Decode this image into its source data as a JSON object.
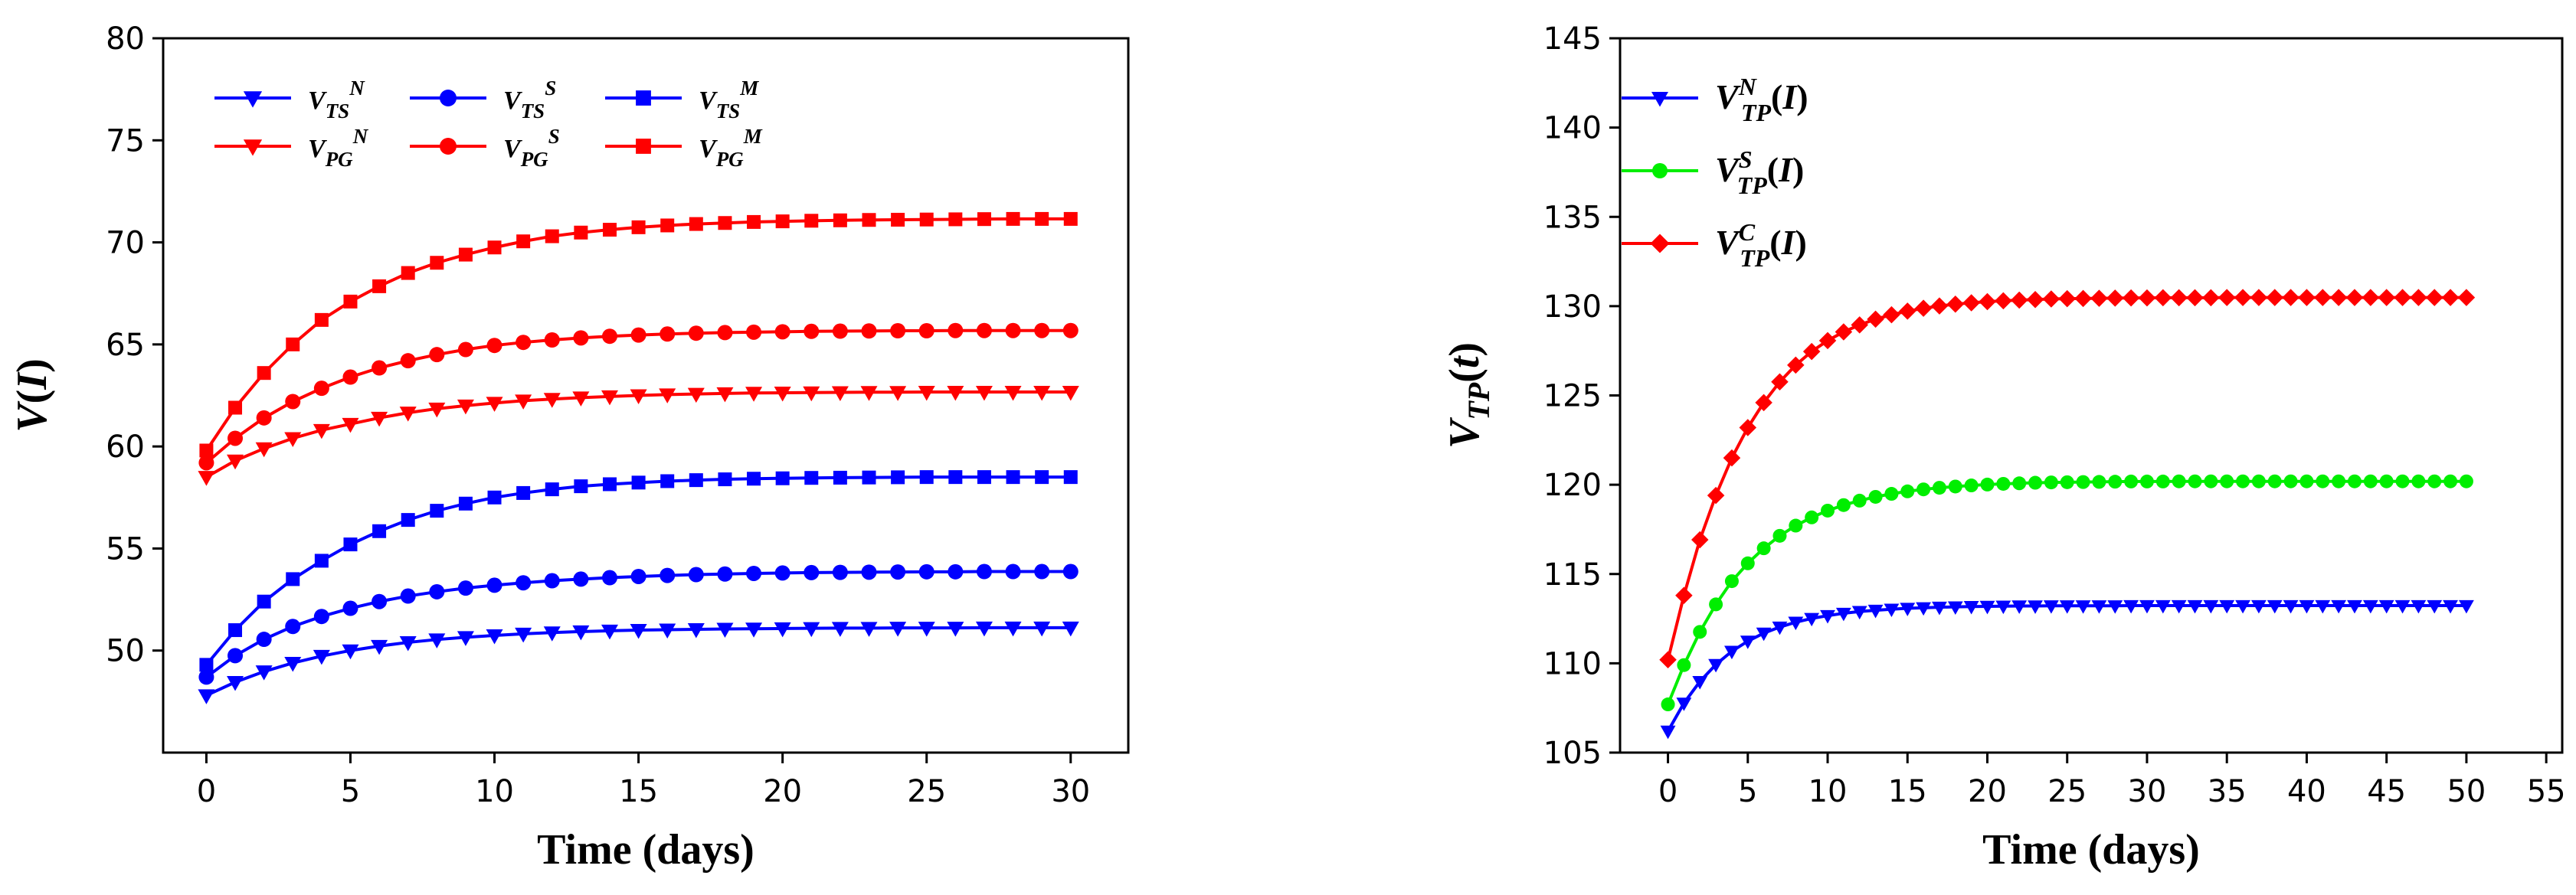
{
  "chart_data": [
    {
      "type": "line",
      "xlabel": "Time (days)",
      "ylabel": {
        "base": "V",
        "arg": "I"
      },
      "xlim": [
        -1.5,
        32
      ],
      "ylim": [
        45,
        80
      ],
      "xticks": [
        0,
        5,
        10,
        15,
        20,
        25,
        30
      ],
      "yticks": [
        50,
        55,
        60,
        65,
        70,
        75,
        80
      ],
      "series": [
        {
          "name": "V_TS^N",
          "label_base": "V",
          "label_sub": "TS",
          "label_sup": "N",
          "marker": "triangle-down",
          "color": "#0000ff",
          "x": [
            0,
            1,
            2,
            3,
            4,
            5,
            6,
            7,
            8,
            9,
            10,
            11,
            12,
            13,
            14,
            15,
            16,
            17,
            18,
            19,
            20,
            21,
            22,
            23,
            24,
            25,
            26,
            27,
            28,
            29,
            30
          ],
          "y": [
            47.8,
            48.45,
            48.97,
            49.39,
            49.73,
            50.0,
            50.22,
            50.4,
            50.54,
            50.65,
            50.74,
            50.82,
            50.88,
            50.93,
            50.97,
            51.0,
            51.02,
            51.04,
            51.06,
            51.07,
            51.08,
            51.09,
            51.1,
            51.1,
            51.11,
            51.11,
            51.11,
            51.12,
            51.12,
            51.12,
            51.12
          ]
        },
        {
          "name": "V_TS^S",
          "label_base": "V",
          "label_sub": "TS",
          "label_sup": "S",
          "marker": "circle",
          "color": "#0000ff",
          "x": [
            0,
            1,
            2,
            3,
            4,
            5,
            6,
            7,
            8,
            9,
            10,
            11,
            12,
            13,
            14,
            15,
            16,
            17,
            18,
            19,
            20,
            21,
            22,
            23,
            24,
            25,
            26,
            27,
            28,
            29,
            30
          ],
          "y": [
            48.7,
            49.75,
            50.55,
            51.18,
            51.67,
            52.07,
            52.4,
            52.67,
            52.88,
            53.06,
            53.2,
            53.32,
            53.42,
            53.5,
            53.57,
            53.63,
            53.68,
            53.72,
            53.75,
            53.78,
            53.8,
            53.82,
            53.83,
            53.84,
            53.85,
            53.86,
            53.86,
            53.87,
            53.87,
            53.87,
            53.87
          ]
        },
        {
          "name": "V_TS^M",
          "label_base": "V",
          "label_sub": "TS",
          "label_sup": "M",
          "marker": "square",
          "color": "#0000ff",
          "x": [
            0,
            1,
            2,
            3,
            4,
            5,
            6,
            7,
            8,
            9,
            10,
            11,
            12,
            13,
            14,
            15,
            16,
            17,
            18,
            19,
            20,
            21,
            22,
            23,
            24,
            25,
            26,
            27,
            28,
            29,
            30
          ],
          "y": [
            49.3,
            51.0,
            52.4,
            53.5,
            54.4,
            55.2,
            55.85,
            56.4,
            56.85,
            57.2,
            57.5,
            57.72,
            57.9,
            58.05,
            58.15,
            58.23,
            58.3,
            58.35,
            58.39,
            58.42,
            58.44,
            58.46,
            58.47,
            58.48,
            58.49,
            58.5,
            58.5,
            58.5,
            58.5,
            58.5,
            58.5
          ]
        },
        {
          "name": "V_PG^N",
          "label_base": "V",
          "label_sub": "PG",
          "label_sup": "N",
          "marker": "triangle-down",
          "color": "#ff0000",
          "x": [
            0,
            1,
            2,
            3,
            4,
            5,
            6,
            7,
            8,
            9,
            10,
            11,
            12,
            13,
            14,
            15,
            16,
            17,
            18,
            19,
            20,
            21,
            22,
            23,
            24,
            25,
            26,
            27,
            28,
            29,
            30
          ],
          "y": [
            58.5,
            59.3,
            59.9,
            60.4,
            60.8,
            61.1,
            61.4,
            61.65,
            61.85,
            62.0,
            62.13,
            62.24,
            62.32,
            62.39,
            62.45,
            62.5,
            62.54,
            62.57,
            62.6,
            62.62,
            62.63,
            62.64,
            62.65,
            62.66,
            62.66,
            62.67,
            62.67,
            62.67,
            62.67,
            62.67,
            62.67
          ]
        },
        {
          "name": "V_PG^S",
          "label_base": "V",
          "label_sub": "PG",
          "label_sup": "S",
          "marker": "circle",
          "color": "#ff0000",
          "x": [
            0,
            1,
            2,
            3,
            4,
            5,
            6,
            7,
            8,
            9,
            10,
            11,
            12,
            13,
            14,
            15,
            16,
            17,
            18,
            19,
            20,
            21,
            22,
            23,
            24,
            25,
            26,
            27,
            28,
            29,
            30
          ],
          "y": [
            59.2,
            60.4,
            61.4,
            62.2,
            62.85,
            63.4,
            63.85,
            64.2,
            64.5,
            64.75,
            64.95,
            65.1,
            65.22,
            65.32,
            65.4,
            65.46,
            65.51,
            65.55,
            65.58,
            65.6,
            65.62,
            65.64,
            65.65,
            65.66,
            65.67,
            65.67,
            65.68,
            65.68,
            65.68,
            65.68,
            65.68
          ]
        },
        {
          "name": "V_PG^M",
          "label_base": "V",
          "label_sub": "PG",
          "label_sup": "M",
          "marker": "square",
          "color": "#ff0000",
          "x": [
            0,
            1,
            2,
            3,
            4,
            5,
            6,
            7,
            8,
            9,
            10,
            11,
            12,
            13,
            14,
            15,
            16,
            17,
            18,
            19,
            20,
            21,
            22,
            23,
            24,
            25,
            26,
            27,
            28,
            29,
            30
          ],
          "y": [
            59.8,
            61.9,
            63.6,
            65.0,
            66.2,
            67.1,
            67.85,
            68.5,
            69.0,
            69.4,
            69.75,
            70.05,
            70.3,
            70.48,
            70.62,
            70.74,
            70.83,
            70.9,
            70.95,
            71.0,
            71.03,
            71.06,
            71.08,
            71.1,
            71.11,
            71.12,
            71.13,
            71.14,
            71.15,
            71.15,
            71.15
          ]
        }
      ]
    },
    {
      "type": "line",
      "xlabel": "Time (days)",
      "ylabel": {
        "base": "V",
        "sub": "TP",
        "arg": "t"
      },
      "xlim": [
        -3,
        56
      ],
      "ylim": [
        105,
        145
      ],
      "xticks": [
        0,
        5,
        10,
        15,
        20,
        25,
        30,
        35,
        40,
        45,
        50,
        55
      ],
      "yticks": [
        105,
        110,
        115,
        120,
        125,
        130,
        135,
        140,
        145
      ],
      "series": [
        {
          "name": "V_TP^N(I)",
          "label_base": "V",
          "label_sub": "TP",
          "label_sup": "N",
          "label_arg": "I",
          "marker": "triangle-down",
          "color": "#0000ff",
          "x": [
            0,
            1,
            2,
            3,
            4,
            5,
            6,
            7,
            8,
            9,
            10,
            11,
            12,
            13,
            14,
            15,
            16,
            17,
            18,
            19,
            20,
            21,
            22,
            23,
            24,
            25,
            26,
            27,
            28,
            29,
            30,
            31,
            32,
            33,
            34,
            35,
            36,
            37,
            38,
            39,
            40,
            41,
            42,
            43,
            44,
            45,
            46,
            47,
            48,
            49,
            50
          ],
          "y": [
            106.2,
            107.77,
            108.98,
            109.93,
            110.67,
            111.24,
            111.69,
            112.03,
            112.3,
            112.51,
            112.67,
            112.8,
            112.9,
            112.97,
            113.03,
            113.08,
            113.11,
            113.14,
            113.16,
            113.18,
            113.19,
            113.2,
            113.21,
            113.21,
            113.22,
            113.22,
            113.22,
            113.22,
            113.22,
            113.23,
            113.23,
            113.23,
            113.23,
            113.23,
            113.23,
            113.23,
            113.23,
            113.23,
            113.23,
            113.23,
            113.23,
            113.23,
            113.23,
            113.23,
            113.23,
            113.23,
            113.23,
            113.23,
            113.23,
            113.23,
            113.23
          ]
        },
        {
          "name": "V_TP^S(I)",
          "label_base": "V",
          "label_sub": "TP",
          "label_sup": "S",
          "label_arg": "I",
          "marker": "circle",
          "color": "#00ee00",
          "x": [
            0,
            1,
            2,
            3,
            4,
            5,
            6,
            7,
            8,
            9,
            10,
            11,
            12,
            13,
            14,
            15,
            16,
            17,
            18,
            19,
            20,
            21,
            22,
            23,
            24,
            25,
            26,
            27,
            28,
            29,
            30,
            31,
            32,
            33,
            34,
            35,
            36,
            37,
            38,
            39,
            40,
            41,
            42,
            43,
            44,
            45,
            46,
            47,
            48,
            49,
            50
          ],
          "y": [
            107.7,
            109.9,
            111.76,
            113.3,
            114.6,
            115.6,
            116.44,
            117.14,
            117.71,
            118.17,
            118.55,
            118.86,
            119.11,
            119.32,
            119.49,
            119.63,
            119.74,
            119.83,
            119.9,
            119.96,
            120.01,
            120.05,
            120.08,
            120.11,
            120.13,
            120.14,
            120.15,
            120.16,
            120.17,
            120.18,
            120.18,
            120.18,
            120.19,
            120.19,
            120.19,
            120.19,
            120.19,
            120.19,
            120.19,
            120.19,
            120.19,
            120.19,
            120.19,
            120.19,
            120.19,
            120.19,
            120.19,
            120.19,
            120.19,
            120.19,
            120.19
          ]
        },
        {
          "name": "V_TP^C(I)",
          "label_base": "V",
          "label_sub": "TP",
          "label_sup": "C",
          "label_arg": "I",
          "marker": "diamond",
          "color": "#ff0000",
          "x": [
            0,
            1,
            2,
            3,
            4,
            5,
            6,
            7,
            8,
            9,
            10,
            11,
            12,
            13,
            14,
            15,
            16,
            17,
            18,
            19,
            20,
            21,
            22,
            23,
            24,
            25,
            26,
            27,
            28,
            29,
            30,
            31,
            32,
            33,
            34,
            35,
            36,
            37,
            38,
            39,
            40,
            41,
            42,
            43,
            44,
            45,
            46,
            47,
            48,
            49,
            50
          ],
          "y": [
            110.2,
            113.8,
            116.92,
            119.4,
            121.5,
            123.2,
            124.6,
            125.76,
            126.7,
            127.46,
            128.07,
            128.56,
            128.95,
            129.27,
            129.52,
            129.72,
            129.88,
            130.01,
            130.11,
            130.19,
            130.25,
            130.3,
            130.34,
            130.37,
            130.4,
            130.42,
            130.43,
            130.44,
            130.45,
            130.46,
            130.46,
            130.47,
            130.47,
            130.47,
            130.47,
            130.48,
            130.48,
            130.48,
            130.48,
            130.48,
            130.48,
            130.48,
            130.48,
            130.48,
            130.48,
            130.48,
            130.48,
            130.48,
            130.48,
            130.48,
            130.48
          ]
        }
      ]
    }
  ]
}
